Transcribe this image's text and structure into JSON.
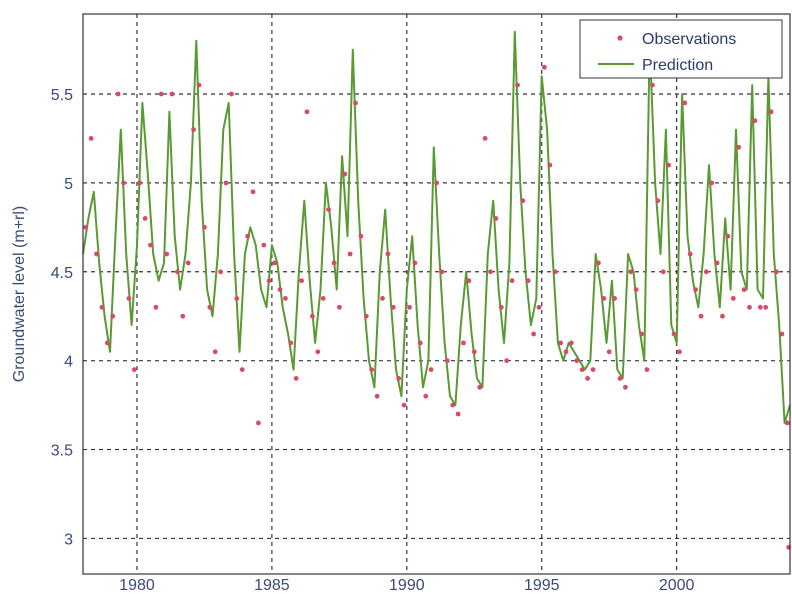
{
  "chart_data": {
    "type": "line",
    "title": "",
    "xlabel": "",
    "ylabel": "Groundwater level (m+rl)",
    "xlim": [
      1978,
      2004.2
    ],
    "ylim": [
      2.8,
      5.95
    ],
    "x_ticks": [
      1980,
      1985,
      1990,
      1995,
      2000
    ],
    "x_tick_labels": [
      "1980",
      "1985",
      "1990",
      "1995",
      "2000"
    ],
    "y_ticks": [
      3,
      3.5,
      4,
      4.5,
      5,
      5.5
    ],
    "y_tick_labels": [
      "3",
      "3.5",
      "4",
      "4.5",
      "5",
      "5.5"
    ],
    "grid": true,
    "grid_style": "dashed",
    "legend_position": "top-right",
    "colors": {
      "observations": "#d84a6a",
      "prediction": "#5a9a32",
      "axis": "#333333",
      "grid": "#333355",
      "tick_text": "#3a4a7a"
    },
    "legend": [
      {
        "label": "Observations",
        "marker": "dot"
      },
      {
        "label": "Prediction",
        "marker": "line"
      }
    ],
    "series": [
      {
        "name": "Prediction",
        "kind": "line",
        "x": [
          1978.0,
          1978.2,
          1978.4,
          1978.6,
          1978.8,
          1979.0,
          1979.2,
          1979.4,
          1979.6,
          1979.8,
          1980.0,
          1980.2,
          1980.4,
          1980.6,
          1980.8,
          1981.0,
          1981.2,
          1981.4,
          1981.6,
          1981.8,
          1982.0,
          1982.2,
          1982.4,
          1982.6,
          1982.8,
          1983.0,
          1983.2,
          1983.4,
          1983.6,
          1983.8,
          1984.0,
          1984.2,
          1984.4,
          1984.6,
          1984.8,
          1985.0,
          1985.2,
          1985.4,
          1985.6,
          1985.8,
          1986.0,
          1986.2,
          1986.4,
          1986.6,
          1986.8,
          1987.0,
          1987.2,
          1987.4,
          1987.6,
          1987.8,
          1988.0,
          1988.2,
          1988.4,
          1988.6,
          1988.8,
          1989.0,
          1989.2,
          1989.4,
          1989.6,
          1989.8,
          1990.0,
          1990.2,
          1990.4,
          1990.6,
          1990.8,
          1991.0,
          1991.2,
          1991.4,
          1991.6,
          1991.8,
          1992.0,
          1992.2,
          1992.4,
          1992.6,
          1992.8,
          1993.0,
          1993.2,
          1993.4,
          1993.6,
          1993.8,
          1994.0,
          1994.2,
          1994.4,
          1994.6,
          1994.8,
          1995.0,
          1995.2,
          1995.4,
          1995.6,
          1995.8,
          1996.0,
          1996.2,
          1996.4,
          1996.6,
          1996.8,
          1997.0,
          1997.2,
          1997.4,
          1997.6,
          1997.8,
          1998.0,
          1998.2,
          1998.4,
          1998.6,
          1998.8,
          1999.0,
          1999.2,
          1999.4,
          1999.6,
          1999.8,
          2000.0,
          2000.2,
          2000.4,
          2000.6,
          2000.8,
          2001.0,
          2001.2,
          2001.4,
          2001.6,
          2001.8,
          2002.0,
          2002.2,
          2002.4,
          2002.6,
          2002.8,
          2003.0,
          2003.2,
          2003.4,
          2003.6,
          2003.8,
          2004.0,
          2004.2
        ],
        "y": [
          4.6,
          4.8,
          4.95,
          4.55,
          4.25,
          4.05,
          4.7,
          5.3,
          4.6,
          4.2,
          4.65,
          5.45,
          5.05,
          4.6,
          4.45,
          4.55,
          5.4,
          4.7,
          4.4,
          4.6,
          5.0,
          5.8,
          4.9,
          4.4,
          4.25,
          4.6,
          5.3,
          5.45,
          4.6,
          4.05,
          4.6,
          4.75,
          4.65,
          4.4,
          4.3,
          4.65,
          4.55,
          4.3,
          4.15,
          3.95,
          4.5,
          4.9,
          4.45,
          4.1,
          4.4,
          5.0,
          4.75,
          4.4,
          5.15,
          4.7,
          5.75,
          4.9,
          4.35,
          4.0,
          3.85,
          4.5,
          4.85,
          4.35,
          3.95,
          3.8,
          4.4,
          4.7,
          4.2,
          3.85,
          4.0,
          5.2,
          4.6,
          4.1,
          3.8,
          3.75,
          4.2,
          4.5,
          4.15,
          3.9,
          3.85,
          4.6,
          4.9,
          4.4,
          4.1,
          4.55,
          5.85,
          5.0,
          4.5,
          4.2,
          4.35,
          5.6,
          5.3,
          4.6,
          4.1,
          4.0,
          4.1,
          4.05,
          4.0,
          3.95,
          4.0,
          4.6,
          4.4,
          4.1,
          4.45,
          3.95,
          3.9,
          4.6,
          4.5,
          4.2,
          4.0,
          5.8,
          5.0,
          4.6,
          5.3,
          4.2,
          4.1,
          5.5,
          4.7,
          4.45,
          4.3,
          4.6,
          5.1,
          4.6,
          4.3,
          4.8,
          4.4,
          5.3,
          4.5,
          4.4,
          5.55,
          4.4,
          4.35,
          5.6,
          4.6,
          4.2,
          3.65,
          3.75
        ]
      },
      {
        "name": "Observations",
        "kind": "scatter",
        "x": [
          1978.1,
          1978.3,
          1978.5,
          1978.7,
          1978.9,
          1979.1,
          1979.3,
          1979.5,
          1979.7,
          1979.9,
          1980.1,
          1980.3,
          1980.5,
          1980.7,
          1980.9,
          1981.1,
          1981.3,
          1981.5,
          1981.7,
          1981.9,
          1982.1,
          1982.3,
          1982.5,
          1982.7,
          1982.9,
          1983.1,
          1983.3,
          1983.5,
          1983.7,
          1983.9,
          1984.1,
          1984.3,
          1984.5,
          1984.7,
          1984.9,
          1985.1,
          1985.3,
          1985.5,
          1985.7,
          1985.9,
          1986.1,
          1986.3,
          1986.5,
          1986.7,
          1986.9,
          1987.1,
          1987.3,
          1987.5,
          1987.7,
          1987.9,
          1988.1,
          1988.3,
          1988.5,
          1988.7,
          1988.9,
          1989.1,
          1989.3,
          1989.5,
          1989.7,
          1989.9,
          1990.1,
          1990.3,
          1990.5,
          1990.7,
          1990.9,
          1991.1,
          1991.3,
          1991.5,
          1991.7,
          1991.9,
          1992.1,
          1992.3,
          1992.5,
          1992.7,
          1992.9,
          1993.1,
          1993.3,
          1993.5,
          1993.7,
          1993.9,
          1994.1,
          1994.3,
          1994.5,
          1994.7,
          1994.9,
          1995.1,
          1995.3,
          1995.5,
          1995.7,
          1995.9,
          1996.1,
          1996.3,
          1996.5,
          1996.7,
          1996.9,
          1997.1,
          1997.3,
          1997.5,
          1997.7,
          1997.9,
          1998.1,
          1998.3,
          1998.5,
          1998.7,
          1998.9,
          1999.1,
          1999.3,
          1999.5,
          1999.7,
          1999.9,
          2000.1,
          2000.3,
          2000.5,
          2000.7,
          2000.9,
          2001.1,
          2001.3,
          2001.5,
          2001.7,
          2001.9,
          2002.1,
          2002.3,
          2002.5,
          2002.7,
          2002.9,
          2003.1,
          2003.3,
          2003.5,
          2003.7,
          2003.9,
          2004.1,
          2004.15
        ],
        "y": [
          4.75,
          5.25,
          4.6,
          4.3,
          4.1,
          4.25,
          5.5,
          5.0,
          4.35,
          3.95,
          5.0,
          4.8,
          4.65,
          4.3,
          5.5,
          4.6,
          5.5,
          4.5,
          4.25,
          4.55,
          5.3,
          5.55,
          4.75,
          4.3,
          4.05,
          4.5,
          5.0,
          5.5,
          4.35,
          3.95,
          4.7,
          4.95,
          3.65,
          4.65,
          4.45,
          4.55,
          4.4,
          4.35,
          4.1,
          3.9,
          4.45,
          5.4,
          4.25,
          4.05,
          4.35,
          4.85,
          4.55,
          4.3,
          5.05,
          4.6,
          5.45,
          4.7,
          4.25,
          3.95,
          3.8,
          4.35,
          4.6,
          4.3,
          3.9,
          3.75,
          4.3,
          4.55,
          4.1,
          3.8,
          3.95,
          5.0,
          4.5,
          4.0,
          3.75,
          3.7,
          4.1,
          4.45,
          4.05,
          3.85,
          5.25,
          4.5,
          4.8,
          4.3,
          4.0,
          4.45,
          5.55,
          4.9,
          4.45,
          4.15,
          4.3,
          5.65,
          5.1,
          4.5,
          4.1,
          4.05,
          4.1,
          4.0,
          3.95,
          3.9,
          3.95,
          4.55,
          4.35,
          4.05,
          4.35,
          3.9,
          3.85,
          4.5,
          4.4,
          4.15,
          3.95,
          5.55,
          4.9,
          4.5,
          5.1,
          4.15,
          4.05,
          5.45,
          4.6,
          4.4,
          4.25,
          4.5,
          5.0,
          4.55,
          4.25,
          4.7,
          4.35,
          5.2,
          4.4,
          4.3,
          5.35,
          4.3,
          4.3,
          5.4,
          4.5,
          4.15,
          3.65,
          2.95
        ]
      }
    ]
  }
}
